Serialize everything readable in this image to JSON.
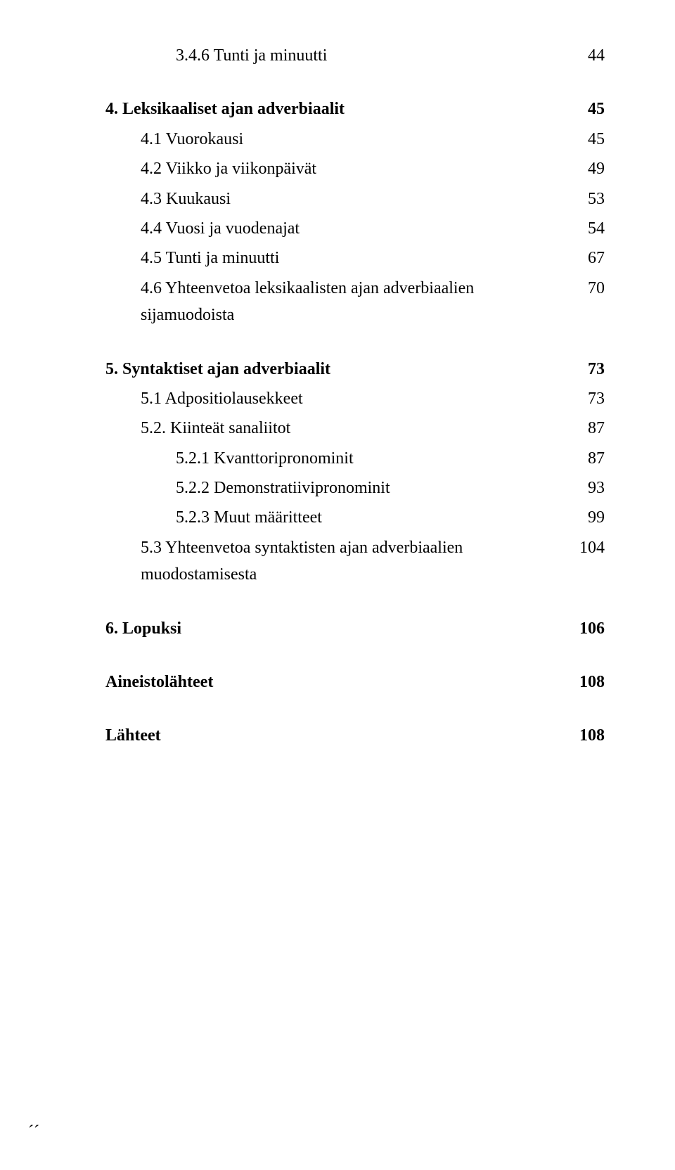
{
  "entries": [
    {
      "label": "3.4.6 Tunti ja minuutti",
      "page": "44",
      "indent": 3,
      "bold": false
    },
    {
      "gap": "section"
    },
    {
      "label": "4. Leksikaaliset ajan adverbiaalit",
      "page": "45",
      "indent": 1,
      "bold": true
    },
    {
      "gap": "item"
    },
    {
      "label": "4.1 Vuorokausi",
      "page": "45",
      "indent": 2,
      "bold": false
    },
    {
      "gap": "item"
    },
    {
      "label": "4.2 Viikko ja viikonpäivät",
      "page": "49",
      "indent": 2,
      "bold": false
    },
    {
      "gap": "item"
    },
    {
      "label": "4.3 Kuukausi",
      "page": "53",
      "indent": 2,
      "bold": false
    },
    {
      "gap": "item"
    },
    {
      "label": "4.4 Vuosi ja vuodenajat",
      "page": "54",
      "indent": 2,
      "bold": false
    },
    {
      "gap": "item"
    },
    {
      "label": "4.5 Tunti ja minuutti",
      "page": "67",
      "indent": 2,
      "bold": false
    },
    {
      "gap": "item"
    },
    {
      "label": "4.6 Yhteenvetoa leksikaalisten ajan adverbiaalien sijamuodoista",
      "page": "70",
      "indent": 2,
      "bold": false
    },
    {
      "gap": "section"
    },
    {
      "label": "5. Syntaktiset ajan adverbiaalit",
      "page": "73",
      "indent": 1,
      "bold": true
    },
    {
      "gap": "item"
    },
    {
      "label": "5.1 Adpositiolausekkeet",
      "page": "73",
      "indent": 2,
      "bold": false
    },
    {
      "gap": "item"
    },
    {
      "label": "5.2. Kiinteät sanaliitot",
      "page": "87",
      "indent": 2,
      "bold": false
    },
    {
      "gap": "item"
    },
    {
      "label": "5.2.1 Kvanttoripronominit",
      "page": "87",
      "indent": 3,
      "bold": false
    },
    {
      "gap": "item"
    },
    {
      "label": "5.2.2 Demonstratiivipronominit",
      "page": "93",
      "indent": 3,
      "bold": false
    },
    {
      "gap": "item"
    },
    {
      "label": "5.2.3 Muut määritteet",
      "page": "99",
      "indent": 3,
      "bold": false
    },
    {
      "gap": "item"
    },
    {
      "label": "5.3 Yhteenvetoa syntaktisten ajan adverbiaalien muodostamisesta",
      "page": "104",
      "indent": 2,
      "bold": false
    },
    {
      "gap": "section"
    },
    {
      "label": "6. Lopuksi",
      "page": "106",
      "indent": 1,
      "bold": true
    },
    {
      "gap": "section"
    },
    {
      "label": "Aineistolähteet",
      "page": "108",
      "indent": 1,
      "bold": true
    },
    {
      "gap": "section"
    },
    {
      "label": "Lähteet",
      "page": "108",
      "indent": 1,
      "bold": true
    }
  ],
  "ticks": "´´"
}
